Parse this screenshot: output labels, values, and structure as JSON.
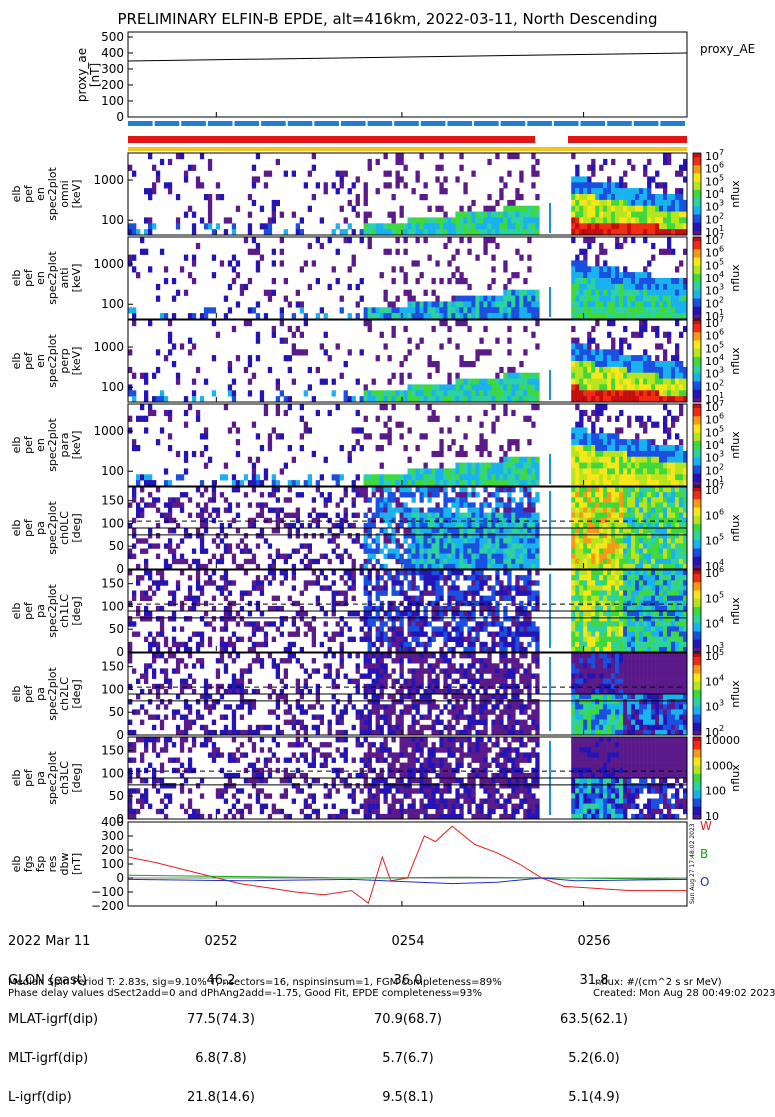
{
  "title": "PRELIMINARY ELFIN-B EPDE, alt=416km, 2022-03-11, North Descending",
  "ae_panel": {
    "ylabel": [
      "proxy_ae",
      "[nT]"
    ],
    "yticks": [
      "500",
      "400",
      "300",
      "200",
      "100",
      "0"
    ],
    "legend": "proxy_AE"
  },
  "spec_panels": [
    {
      "ylabel": [
        "elb",
        "pef",
        "en",
        "spec2plot",
        "omni",
        "[keV]"
      ],
      "yticks": [
        "1000",
        "100"
      ],
      "cbar_ticks": [
        "10^7",
        "10^6",
        "10^5",
        "10^4",
        "10^3",
        "10^2",
        "10^1"
      ],
      "cbar_label": "nflux"
    },
    {
      "ylabel": [
        "elb",
        "pef",
        "en",
        "spec2plot",
        "anti",
        "[keV]"
      ],
      "yticks": [
        "1000",
        "100"
      ],
      "cbar_ticks": [
        "10^7",
        "10^6",
        "10^5",
        "10^4",
        "10^3",
        "10^2",
        "10^1"
      ],
      "cbar_label": "nflux"
    },
    {
      "ylabel": [
        "elb",
        "pef",
        "en",
        "spec2plot",
        "perp",
        "[keV]"
      ],
      "yticks": [
        "1000",
        "100"
      ],
      "cbar_ticks": [
        "10^7",
        "10^6",
        "10^5",
        "10^4",
        "10^3",
        "10^2",
        "10^1"
      ],
      "cbar_label": "nflux"
    },
    {
      "ylabel": [
        "elb",
        "pef",
        "en",
        "spec2plot",
        "para",
        "[keV]"
      ],
      "yticks": [
        "1000",
        "100"
      ],
      "cbar_ticks": [
        "10^7",
        "10^6",
        "10^5",
        "10^4",
        "10^3",
        "10^2",
        "10^1"
      ],
      "cbar_label": "nflux"
    },
    {
      "ylabel": [
        "elb",
        "pef",
        "pa",
        "spec2plot",
        "ch0LC",
        "[deg]"
      ],
      "yticks": [
        "150",
        "100",
        "50",
        "0"
      ],
      "cbar_ticks": [
        "10^7",
        "10^6",
        "10^5",
        "10^4"
      ],
      "cbar_label": "nflux"
    },
    {
      "ylabel": [
        "elb",
        "pef",
        "pa",
        "spec2plot",
        "ch1LC",
        "[deg]"
      ],
      "yticks": [
        "150",
        "100",
        "50",
        "0"
      ],
      "cbar_ticks": [
        "10^6",
        "10^5",
        "10^4",
        "10^3"
      ],
      "cbar_label": "nflux"
    },
    {
      "ylabel": [
        "elb",
        "pef",
        "pa",
        "spec2plot",
        "ch2LC",
        "[deg]"
      ],
      "yticks": [
        "150",
        "100",
        "50",
        "0"
      ],
      "cbar_ticks": [
        "10^5",
        "10^4",
        "10^3",
        "10^2"
      ],
      "cbar_label": "nflux"
    },
    {
      "ylabel": [
        "elb",
        "pef",
        "pa",
        "spec2plot",
        "ch3LC",
        "[deg]"
      ],
      "yticks": [
        "150",
        "100",
        "50",
        "0"
      ],
      "cbar_ticks": [
        "10000",
        "1000",
        "100",
        "10"
      ],
      "cbar_label": "nflux"
    }
  ],
  "b_panel": {
    "ylabel": [
      "elb",
      "fgs",
      "fsp",
      "res",
      "dbw",
      "[nT]"
    ],
    "yticks": [
      "400",
      "300",
      "200",
      "100",
      "0",
      "−100",
      "−200"
    ],
    "legend": [
      "W",
      "B",
      "O"
    ],
    "stamp": "Sun Aug 27 17:48:02 2023"
  },
  "chart_data": {
    "type": "line",
    "title": "PRELIMINARY ELFIN-B EPDE, alt=416km, 2022-03-11, North Descending",
    "time_ticks": [
      "0252",
      "0254",
      "0256"
    ],
    "ae_series": {
      "name": "proxy_AE",
      "ylim": [
        0,
        500
      ],
      "x": [
        0,
        1
      ],
      "values": [
        350,
        400
      ]
    },
    "b_series": [
      {
        "name": "W",
        "color": "#e52020",
        "ylim": [
          -200,
          400
        ],
        "x": [
          0,
          0.05,
          0.1,
          0.15,
          0.2,
          0.25,
          0.3,
          0.35,
          0.4,
          0.43,
          0.455,
          0.47,
          0.5,
          0.53,
          0.55,
          0.58,
          0.62,
          0.66,
          0.7,
          0.74,
          0.78,
          0.82,
          0.86,
          0.9,
          0.95,
          1
        ],
        "values": [
          150,
          110,
          60,
          10,
          -40,
          -70,
          -100,
          -120,
          -90,
          -180,
          150,
          -20,
          0,
          300,
          260,
          370,
          240,
          180,
          100,
          0,
          -60,
          -70,
          -80,
          -90,
          -90,
          -90
        ]
      },
      {
        "name": "B",
        "color": "#13a313",
        "ylim": [
          -200,
          400
        ],
        "x": [
          0,
          0.2,
          0.4,
          0.6,
          0.8,
          1
        ],
        "values": [
          20,
          10,
          0,
          5,
          0,
          -10
        ]
      },
      {
        "name": "O",
        "color": "#1f2ec9",
        "ylim": [
          -200,
          400
        ],
        "x": [
          0,
          0.2,
          0.4,
          0.58,
          0.66,
          0.74,
          0.8,
          1
        ],
        "values": [
          -10,
          -20,
          -10,
          -40,
          -30,
          0,
          -20,
          -10
        ]
      }
    ]
  },
  "footer": {
    "row_labels": [
      "2022 Mar 11",
      "GLON (east)",
      "MLAT-igrf(dip)",
      "MLT-igrf(dip)",
      "L-igrf(dip)"
    ],
    "columns": [
      [
        "0252",
        "46.2",
        "77.5(74.3)",
        "6.8(7.8)",
        "21.8(14.6)"
      ],
      [
        "0254",
        "36.0",
        "70.9(68.7)",
        "5.7(6.7)",
        "9.5(8.1)"
      ],
      [
        "0256",
        "31.8",
        "63.5(62.1)",
        "5.2(6.0)",
        "5.1(4.9)"
      ]
    ],
    "note_left_1": "Median Spin Period T: 2.83s, sig=9.10% T, nsectors=16, nspinsinsum=1, FGM completeness=89%",
    "note_left_2": "Phase delay values dSect2add=0 and dPhAng2add=-1.75, Good Fit, EPDE completeness=93%",
    "note_right_1": "nflux: #/(cm^2 s sr MeV)",
    "note_right_2": "Created: Mon Aug 28 00:49:02 2023"
  }
}
